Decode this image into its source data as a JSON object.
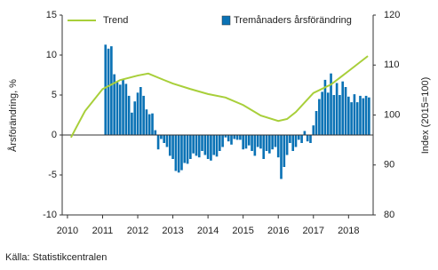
{
  "chart_data": {
    "type": "bar",
    "source": "Källa: Statistikcentralen",
    "ylabel": "Årsförändring, %",
    "y2label": "Index (2015=100)",
    "xlim": [
      2009.85,
      2018.7
    ],
    "xticks": [
      2010,
      2011,
      2012,
      2013,
      2014,
      2015,
      2016,
      2017,
      2018
    ],
    "ylim": [
      -10,
      15
    ],
    "yticks": [
      -10,
      -5,
      0,
      5,
      10,
      15
    ],
    "y2lim": [
      80,
      120
    ],
    "y2ticks": [
      80,
      90,
      100,
      110,
      120
    ],
    "grid": false,
    "series": [
      {
        "name": "Trend",
        "type": "line",
        "axis": "y2",
        "color": "#a8cf3a",
        "x": [
          2010.1,
          2010.25,
          2010.5,
          2011.0,
          2011.5,
          2012.0,
          2012.3,
          2012.75,
          2013.0,
          2013.5,
          2014.0,
          2014.5,
          2015.0,
          2015.5,
          2016.0,
          2016.25,
          2016.5,
          2017.0,
          2017.5,
          2018.0,
          2018.55
        ],
        "values": [
          95.5,
          97.5,
          100.8,
          105.2,
          107.0,
          107.9,
          108.3,
          107.0,
          106.3,
          105.2,
          104.2,
          103.5,
          102.0,
          99.9,
          98.8,
          99.2,
          100.6,
          104.4,
          106.1,
          108.8,
          111.8
        ]
      },
      {
        "name": "Tremånaders årsförändring",
        "type": "bar",
        "color": "#0a72b5",
        "x": [
          2011.083,
          2011.167,
          2011.25,
          2011.333,
          2011.417,
          2011.5,
          2011.583,
          2011.667,
          2011.75,
          2011.833,
          2011.917,
          2012.0,
          2012.083,
          2012.167,
          2012.25,
          2012.333,
          2012.417,
          2012.5,
          2012.583,
          2012.667,
          2012.75,
          2012.833,
          2012.917,
          2013.0,
          2013.083,
          2013.167,
          2013.25,
          2013.333,
          2013.417,
          2013.5,
          2013.583,
          2013.667,
          2013.75,
          2013.833,
          2013.917,
          2014.0,
          2014.083,
          2014.167,
          2014.25,
          2014.333,
          2014.417,
          2014.5,
          2014.583,
          2014.667,
          2014.75,
          2014.833,
          2014.917,
          2015.0,
          2015.083,
          2015.167,
          2015.25,
          2015.333,
          2015.417,
          2015.5,
          2015.583,
          2015.667,
          2015.75,
          2015.833,
          2015.917,
          2016.0,
          2016.083,
          2016.167,
          2016.25,
          2016.333,
          2016.417,
          2016.5,
          2016.583,
          2016.667,
          2016.75,
          2016.833,
          2016.917,
          2017.0,
          2017.083,
          2017.167,
          2017.25,
          2017.333,
          2017.417,
          2017.5,
          2017.583,
          2017.667,
          2017.75,
          2017.833,
          2017.917,
          2018.0,
          2018.083,
          2018.167,
          2018.25,
          2018.333,
          2018.417,
          2018.5,
          2018.583
        ],
        "values": [
          11.3,
          10.8,
          11.1,
          7.6,
          6.6,
          6.3,
          7.0,
          6.4,
          4.9,
          2.8,
          4.2,
          5.3,
          6.0,
          4.9,
          3.2,
          2.6,
          2.7,
          0.6,
          -1.8,
          -0.5,
          -1.0,
          -1.5,
          -2.6,
          -3.0,
          -4.5,
          -4.7,
          -4.4,
          -3.5,
          -3.6,
          -3.0,
          -2.3,
          -2.6,
          -2.8,
          -2.0,
          -2.5,
          -3.0,
          -3.2,
          -2.5,
          -2.7,
          -2.0,
          -1.5,
          -0.3,
          -0.8,
          -1.2,
          -0.5,
          -0.6,
          -0.6,
          -1.8,
          -1.7,
          -1.3,
          -2.0,
          -2.6,
          -1.5,
          -1.7,
          -3.0,
          -2.0,
          -2.3,
          -1.8,
          -1.5,
          -2.8,
          -5.5,
          -4.0,
          -2.5,
          -1.0,
          -2.0,
          -1.5,
          -0.6,
          -1.0,
          0.5,
          -0.8,
          -1.0,
          1.2,
          3.0,
          4.5,
          5.4,
          6.9,
          5.3,
          7.7,
          5.0,
          6.5,
          5.0,
          6.7,
          6.0,
          4.8,
          4.1,
          5.1,
          4.1,
          4.9,
          4.6,
          4.9,
          4.7
        ]
      }
    ]
  }
}
